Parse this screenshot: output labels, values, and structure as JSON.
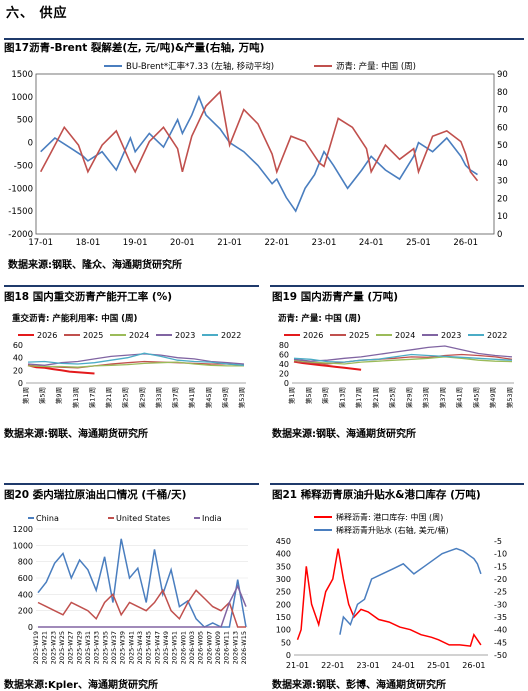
{
  "section": {
    "title": "六、 供应"
  },
  "figures": [
    {
      "label": "图17",
      "title": "沥青-Brent 裂解差(左, 元/吨)&产量(右轴, 万吨)",
      "source": "数据来源:钢联、隆众、海通期货研究所"
    },
    {
      "label": "图18",
      "title": "国内重交沥青产能开工率 (%)",
      "source": "数据来源:钢联、海通期货研究所"
    },
    {
      "label": "图19",
      "title": "国内沥青产量 (万吨)",
      "source": "数据来源:钢联、海通期货研究所"
    },
    {
      "label": "图20",
      "title": "委内瑞拉原油出口情况 (千桶/天)",
      "source": "数据来源:Kpler、海通期货研究所"
    },
    {
      "label": "图21",
      "title": "稀释沥青原油升贴水&港口库存 (万吨)",
      "source": "数据来源:钢联、彭博、海通期货研究所"
    }
  ],
  "chart_data": [
    {
      "type": "line",
      "legend": [
        "BU-Brent*汇率*7.33 (左轴, 移动平均)",
        "沥青: 产量: 中国 (周)"
      ],
      "colors": [
        "#4a7ebf",
        "#c0504d"
      ],
      "x_ticks": [
        "17-01",
        "18-01",
        "19-01",
        "20-01",
        "21-01",
        "22-01",
        "23-01",
        "24-01",
        "25-01",
        "26-01"
      ],
      "y_left": {
        "ticks": [
          -2000,
          -1500,
          -1000,
          -500,
          0,
          500,
          1000,
          1500
        ],
        "lim": [
          -2000,
          1500
        ]
      },
      "y_right": {
        "ticks": [
          0,
          10,
          20,
          30,
          40,
          50,
          60,
          70,
          80,
          90
        ],
        "lim": [
          0,
          90
        ]
      },
      "series": [
        {
          "name": "BU-Brent*汇率*7.33 (左轴, 移动平均)",
          "axis": "left",
          "x": [
            2017.0,
            2017.3,
            2017.6,
            2017.9,
            2018.0,
            2018.3,
            2018.6,
            2018.9,
            2019.0,
            2019.3,
            2019.6,
            2019.9,
            2020.0,
            2020.2,
            2020.35,
            2020.5,
            2020.8,
            2021.0,
            2021.3,
            2021.6,
            2021.9,
            2022.0,
            2022.2,
            2022.4,
            2022.6,
            2022.8,
            2023.0,
            2023.2,
            2023.5,
            2023.8,
            2024.0,
            2024.3,
            2024.6,
            2024.9,
            2025.0,
            2025.3,
            2025.6,
            2025.9,
            2026.0,
            2026.1,
            2026.25
          ],
          "y": [
            -200,
            100,
            -100,
            -300,
            -400,
            -200,
            -600,
            100,
            -200,
            200,
            -100,
            500,
            200,
            600,
            1000,
            600,
            300,
            0,
            -200,
            -500,
            -900,
            -800,
            -1200,
            -1500,
            -1000,
            -700,
            -200,
            -500,
            -1000,
            -600,
            -300,
            -600,
            -800,
            -300,
            0,
            -200,
            100,
            -300,
            -500,
            -600,
            -700
          ]
        },
        {
          "name": "沥青: 产量: 中国 (周)",
          "axis": "right",
          "x": [
            2017.0,
            2017.2,
            2017.5,
            2017.8,
            2018.0,
            2018.3,
            2018.6,
            2018.9,
            2019.0,
            2019.3,
            2019.6,
            2019.9,
            2020.0,
            2020.2,
            2020.5,
            2020.8,
            2021.0,
            2021.3,
            2021.6,
            2021.9,
            2022.0,
            2022.3,
            2022.6,
            2022.9,
            2023.0,
            2023.3,
            2023.6,
            2023.9,
            2024.0,
            2024.3,
            2024.6,
            2024.9,
            2025.0,
            2025.3,
            2025.6,
            2025.9,
            2026.0,
            2026.1,
            2026.25
          ],
          "y": [
            35,
            45,
            60,
            50,
            35,
            50,
            58,
            40,
            35,
            52,
            60,
            48,
            35,
            55,
            72,
            80,
            50,
            70,
            62,
            45,
            35,
            55,
            52,
            40,
            38,
            65,
            60,
            48,
            35,
            50,
            42,
            48,
            35,
            55,
            58,
            52,
            45,
            35,
            30
          ]
        }
      ]
    },
    {
      "type": "line",
      "title": "重交沥青: 产能利用率: 中国 (周)",
      "x_ticks": [
        "第1周",
        "第5周",
        "第9周",
        "第13周",
        "第17周",
        "第21周",
        "第25周",
        "第29周",
        "第33周",
        "第37周",
        "第41周",
        "第45周",
        "第49周",
        "第53周"
      ],
      "y_ticks": [
        0,
        20,
        40,
        60
      ],
      "ylim": [
        0,
        60
      ],
      "series": [
        {
          "name": "2026",
          "color": "#e31a1c",
          "x": [
            1,
            3,
            5,
            7,
            9,
            11,
            13,
            15,
            17
          ],
          "y": [
            28,
            25,
            24,
            22,
            20,
            18,
            17,
            16,
            15
          ]
        },
        {
          "name": "2025",
          "color": "#c0504d",
          "x": [
            1,
            5,
            9,
            13,
            17,
            21,
            25,
            29,
            33,
            37,
            41,
            45,
            49,
            53
          ],
          "y": [
            28,
            26,
            25,
            24,
            27,
            30,
            32,
            34,
            33,
            32,
            31,
            30,
            30,
            28
          ]
        },
        {
          "name": "2024",
          "color": "#9bbb59",
          "x": [
            1,
            5,
            9,
            13,
            17,
            21,
            25,
            29,
            33,
            37,
            41,
            45,
            49,
            53
          ],
          "y": [
            27,
            26,
            26,
            25,
            27,
            28,
            29,
            31,
            32,
            33,
            30,
            28,
            27,
            27
          ]
        },
        {
          "name": "2023",
          "color": "#8064a2",
          "x": [
            1,
            5,
            9,
            13,
            17,
            21,
            25,
            29,
            33,
            37,
            41,
            45,
            49,
            53
          ],
          "y": [
            30,
            28,
            32,
            34,
            38,
            42,
            44,
            46,
            44,
            40,
            38,
            34,
            32,
            30
          ]
        },
        {
          "name": "2022",
          "color": "#4bacc6",
          "x": [
            1,
            5,
            9,
            13,
            17,
            21,
            25,
            29,
            33,
            37,
            41,
            45,
            49,
            53
          ],
          "y": [
            33,
            34,
            31,
            30,
            32,
            36,
            40,
            47,
            42,
            36,
            34,
            33,
            30,
            28
          ]
        }
      ]
    },
    {
      "type": "line",
      "title": "沥青: 产量: 中国 (周)",
      "x_ticks": [
        "第1周",
        "第5周",
        "第9周",
        "第13周",
        "第17周",
        "第21周",
        "第25周",
        "第29周",
        "第33周",
        "第37周",
        "第41周",
        "第45周",
        "第49周",
        "第53周"
      ],
      "y_ticks": [
        0,
        20,
        40,
        60,
        80
      ],
      "ylim": [
        0,
        80
      ],
      "series": [
        {
          "name": "2026",
          "color": "#e31a1c",
          "x": [
            1,
            3,
            5,
            7,
            9,
            11,
            13,
            15,
            17
          ],
          "y": [
            45,
            42,
            40,
            38,
            36,
            34,
            32,
            30,
            28
          ]
        },
        {
          "name": "2025",
          "color": "#c0504d",
          "x": [
            1,
            5,
            9,
            13,
            17,
            21,
            25,
            29,
            33,
            37,
            41,
            45,
            49,
            53
          ],
          "y": [
            45,
            42,
            40,
            44,
            48,
            50,
            52,
            55,
            54,
            58,
            60,
            58,
            55,
            50
          ]
        },
        {
          "name": "2024",
          "color": "#9bbb59",
          "x": [
            1,
            5,
            9,
            13,
            17,
            21,
            25,
            29,
            33,
            37,
            41,
            45,
            49,
            53
          ],
          "y": [
            48,
            44,
            42,
            40,
            44,
            46,
            48,
            50,
            52,
            55,
            52,
            48,
            46,
            45
          ]
        },
        {
          "name": "2023",
          "color": "#8064a2",
          "x": [
            1,
            5,
            9,
            13,
            17,
            21,
            25,
            29,
            33,
            37,
            41,
            45,
            49,
            53
          ],
          "y": [
            50,
            46,
            48,
            52,
            55,
            60,
            65,
            70,
            75,
            78,
            70,
            62,
            58,
            55
          ]
        },
        {
          "name": "2022",
          "color": "#4bacc6",
          "x": [
            1,
            5,
            9,
            13,
            17,
            21,
            25,
            29,
            33,
            37,
            41,
            45,
            49,
            53
          ],
          "y": [
            52,
            50,
            45,
            44,
            48,
            50,
            55,
            60,
            58,
            56,
            54,
            52,
            50,
            48
          ]
        }
      ]
    },
    {
      "type": "line",
      "legend": [
        "China",
        "United States",
        "India"
      ],
      "x_ticks": [
        "2025-W19",
        "2025-W21",
        "2025-W23",
        "2025-W25",
        "2025-W27",
        "2025-W29",
        "2025-W31",
        "2025-W33",
        "2025-W35",
        "2025-W37",
        "2025-W39",
        "2025-W41",
        "2025-W43",
        "2025-W45",
        "2025-W47",
        "2025-W49",
        "2025-W51",
        "2026-W01",
        "2026-W03",
        "2026-W05",
        "2026-W07",
        "2026-W09",
        "2026-W11",
        "2026-W13",
        "2026-W15"
      ],
      "y_ticks": [
        0,
        200,
        400,
        600,
        800,
        1000,
        1200
      ],
      "ylim": [
        0,
        1200
      ],
      "series": [
        {
          "name": "China",
          "color": "#4a7ebf",
          "y": [
            420,
            550,
            780,
            900,
            600,
            820,
            700,
            450,
            860,
            300,
            1080,
            600,
            720,
            300,
            950,
            400,
            700,
            250,
            320,
            100,
            0,
            50,
            0,
            0,
            580,
            0
          ]
        },
        {
          "name": "United States",
          "color": "#c0504d",
          "y": [
            300,
            250,
            200,
            150,
            300,
            250,
            200,
            100,
            300,
            400,
            150,
            300,
            250,
            200,
            300,
            450,
            200,
            100,
            300,
            450,
            350,
            250,
            200,
            300,
            0,
            0
          ]
        },
        {
          "name": "India",
          "color": "#8064a2",
          "y": [
            0,
            0,
            0,
            0,
            0,
            0,
            0,
            0,
            0,
            0,
            0,
            0,
            0,
            0,
            0,
            0,
            0,
            0,
            0,
            0,
            0,
            0,
            0,
            300,
            500,
            250
          ]
        }
      ]
    },
    {
      "type": "line",
      "legend": [
        "稀释沥青: 港口库存: 中国 (周)",
        "稀释沥青升贴水 (右轴, 美元/桶)"
      ],
      "x_ticks": [
        "21-01",
        "22-01",
        "23-01",
        "24-01",
        "25-01",
        "26-01"
      ],
      "y_left": {
        "ticks": [
          0,
          50,
          100,
          150,
          200,
          250,
          300,
          350,
          400,
          450
        ],
        "lim": [
          0,
          450
        ]
      },
      "y_right": {
        "ticks": [
          -50,
          -45,
          -40,
          -35,
          -30,
          -25,
          -20,
          -15,
          -10,
          -5
        ],
        "lim": [
          -50,
          -5
        ]
      },
      "series": [
        {
          "name": "稀释沥青: 港口库存: 中国 (周)",
          "color": "#ff0000",
          "axis": "left",
          "x": [
            2021.0,
            2021.1,
            2021.25,
            2021.4,
            2021.6,
            2021.8,
            2022.0,
            2022.15,
            2022.3,
            2022.45,
            2022.6,
            2022.8,
            2023.0,
            2023.3,
            2023.6,
            2023.9,
            2024.2,
            2024.5,
            2024.8,
            2025.0,
            2025.3,
            2025.6,
            2025.9,
            2026.0,
            2026.1,
            2026.2
          ],
          "y": [
            60,
            100,
            350,
            200,
            120,
            250,
            300,
            420,
            300,
            200,
            150,
            180,
            170,
            140,
            130,
            110,
            100,
            80,
            70,
            60,
            40,
            40,
            35,
            80,
            60,
            40
          ]
        },
        {
          "name": "稀释沥青升贴水 (右轴, 美元/桶)",
          "color": "#4a7ebf",
          "axis": "right",
          "x": [
            2022.2,
            2022.3,
            2022.5,
            2022.7,
            2022.9,
            2023.1,
            2023.4,
            2023.7,
            2024.0,
            2024.3,
            2024.6,
            2024.9,
            2025.1,
            2025.3,
            2025.5,
            2025.7,
            2025.9,
            2026.0,
            2026.1,
            2026.2
          ],
          "y": [
            -42,
            -35,
            -38,
            -30,
            -28,
            -20,
            -18,
            -16,
            -14,
            -18,
            -15,
            -12,
            -10,
            -9,
            -8,
            -9,
            -11,
            -12,
            -14,
            -18
          ]
        }
      ]
    }
  ]
}
